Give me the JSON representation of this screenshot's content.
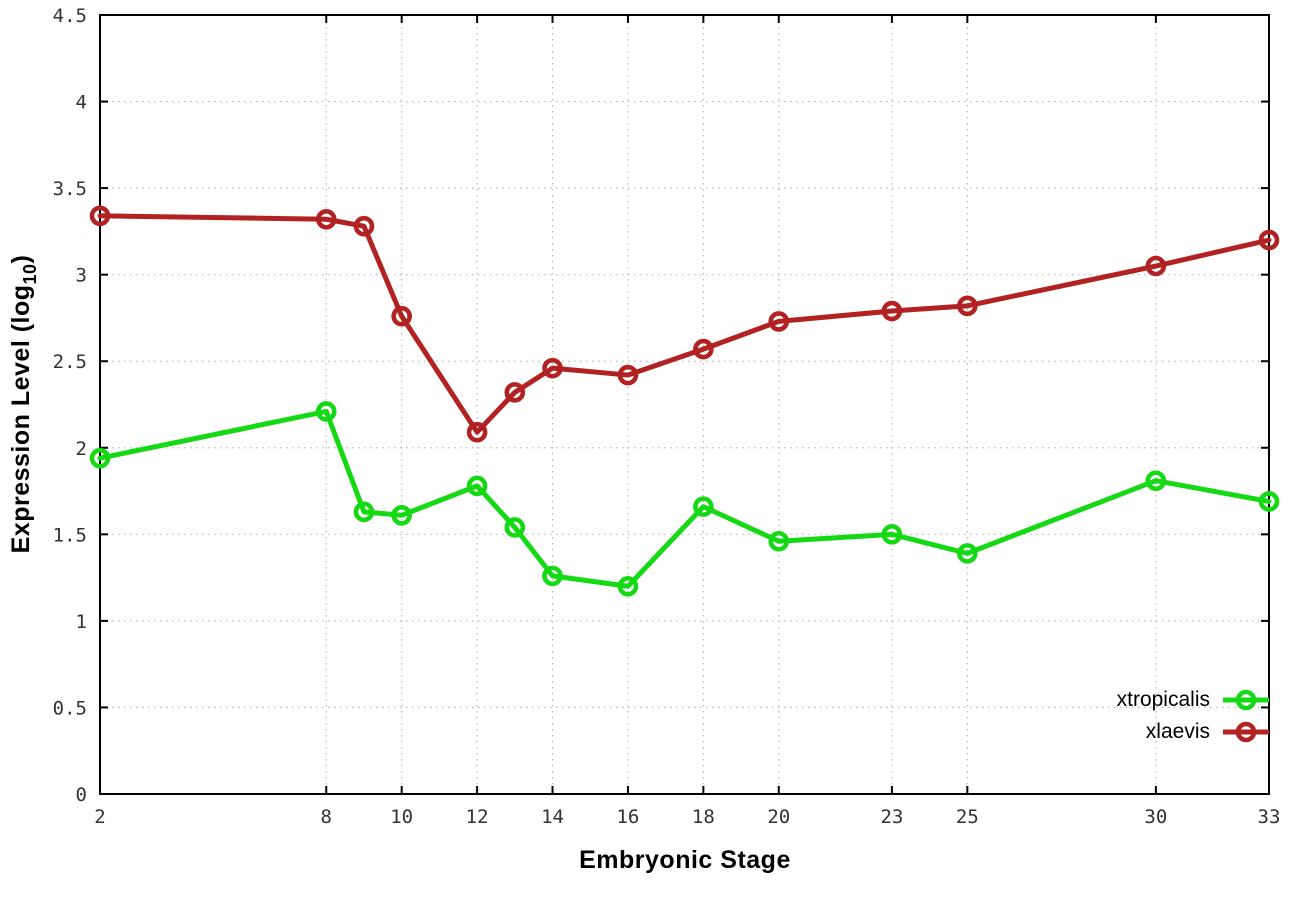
{
  "figure": {
    "background": "#ffffff",
    "border_color": "#000000",
    "grid_color": "#b9b9b9",
    "tick_label_color": "#333333",
    "text_color": "#000000"
  },
  "chart_data": {
    "type": "line",
    "title": "",
    "xlabel": "Embryonic Stage",
    "ylabel": "Expression Level (log10)",
    "ylabel_parts": {
      "main": "Expression Level (log",
      "sub": "10",
      "close": ")"
    },
    "xlim": [
      2,
      33
    ],
    "ylim": [
      0,
      4.5
    ],
    "x": [
      2,
      8,
      9,
      10,
      12,
      13,
      14,
      16,
      18,
      20,
      23,
      25,
      30,
      33
    ],
    "xticks": [
      2,
      8,
      10,
      12,
      14,
      16,
      18,
      20,
      23,
      25,
      30,
      33
    ],
    "yticks": [
      0,
      0.5,
      1,
      1.5,
      2,
      2.5,
      3,
      3.5,
      4,
      4.5
    ],
    "grid": true,
    "marker": "open-circle",
    "legend_position": "bottom-right-inside",
    "series": [
      {
        "name": "xtropicalis",
        "color": "#15D915",
        "values": [
          1.94,
          2.21,
          1.63,
          1.61,
          1.78,
          1.54,
          1.26,
          1.2,
          1.66,
          1.46,
          1.5,
          1.39,
          1.81,
          1.69
        ]
      },
      {
        "name": "xlaevis",
        "color": "#B22222",
        "values": [
          3.34,
          3.32,
          3.28,
          2.76,
          2.09,
          2.32,
          2.46,
          2.42,
          2.57,
          2.73,
          2.79,
          2.82,
          3.05,
          3.2
        ]
      }
    ]
  }
}
